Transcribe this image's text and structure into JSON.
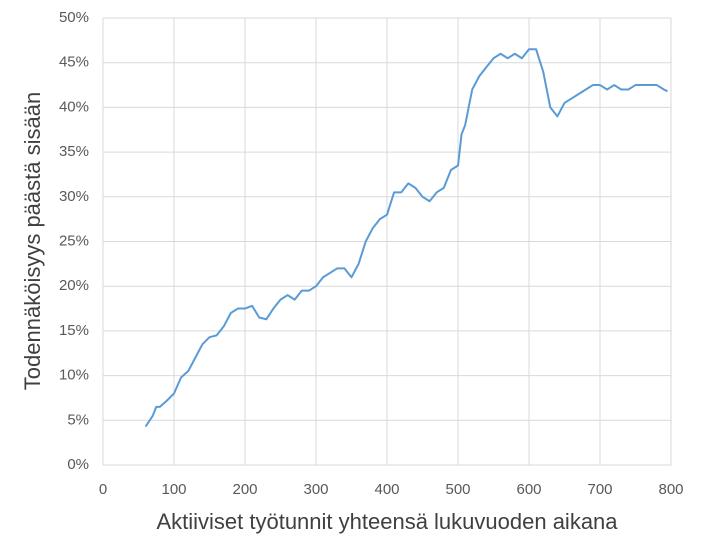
{
  "chart_data": {
    "type": "line",
    "x_label": "Aktiiviset työtunnit yhteensä lukuvuoden aikana",
    "y_label": "Todennäköisyys päästä sisään",
    "x": [
      60,
      70,
      75,
      80,
      90,
      100,
      110,
      120,
      130,
      140,
      150,
      160,
      170,
      180,
      190,
      200,
      210,
      220,
      230,
      240,
      250,
      260,
      270,
      280,
      290,
      300,
      310,
      320,
      330,
      340,
      350,
      360,
      370,
      380,
      390,
      400,
      410,
      420,
      430,
      440,
      450,
      460,
      470,
      480,
      490,
      500,
      505,
      510,
      520,
      530,
      540,
      550,
      560,
      570,
      580,
      590,
      600,
      610,
      620,
      625,
      630,
      640,
      650,
      660,
      670,
      680,
      690,
      700,
      710,
      720,
      730,
      740,
      750,
      760,
      770,
      780,
      790,
      795
    ],
    "series": [
      {
        "name": "Todennäköisyys",
        "color": "#5b9bd5",
        "values": [
          4.3,
          5.5,
          6.5,
          6.5,
          7.2,
          8,
          9.8,
          10.5,
          12,
          13.5,
          14.3,
          14.5,
          15.5,
          17,
          17.5,
          17.5,
          17.8,
          16.5,
          16.3,
          17.5,
          18.5,
          19,
          18.5,
          19.5,
          19.5,
          20,
          21,
          21.5,
          22,
          22,
          21,
          22.5,
          25,
          26.5,
          27.5,
          28,
          30.5,
          30.5,
          31.5,
          31,
          30,
          29.5,
          30.5,
          31,
          33,
          33.5,
          37,
          38,
          42,
          43.5,
          44.5,
          45.5,
          46,
          45.5,
          46,
          45.5,
          46.5,
          46.5,
          44,
          42,
          40,
          39,
          40.5,
          41,
          41.5,
          42,
          42.5,
          42.5,
          42,
          42.5,
          42,
          42,
          42.5,
          42.5,
          42.5,
          42.5,
          42,
          41.8
        ]
      }
    ],
    "xlim": [
      0,
      800
    ],
    "xticks": [
      0,
      100,
      200,
      300,
      400,
      500,
      600,
      700,
      800
    ],
    "ylim": [
      0,
      50
    ],
    "yticks": [
      {
        "value": 0,
        "label": "0%"
      },
      {
        "value": 5,
        "label": "5%"
      },
      {
        "value": 10,
        "label": "10%"
      },
      {
        "value": 15,
        "label": "15%"
      },
      {
        "value": 20,
        "label": "20%"
      },
      {
        "value": 25,
        "label": "25%"
      },
      {
        "value": 30,
        "label": "30%"
      },
      {
        "value": 35,
        "label": "35%"
      },
      {
        "value": 40,
        "label": "40%"
      },
      {
        "value": 45,
        "label": "45%"
      },
      {
        "value": 50,
        "label": "50%"
      }
    ],
    "grid": true
  }
}
